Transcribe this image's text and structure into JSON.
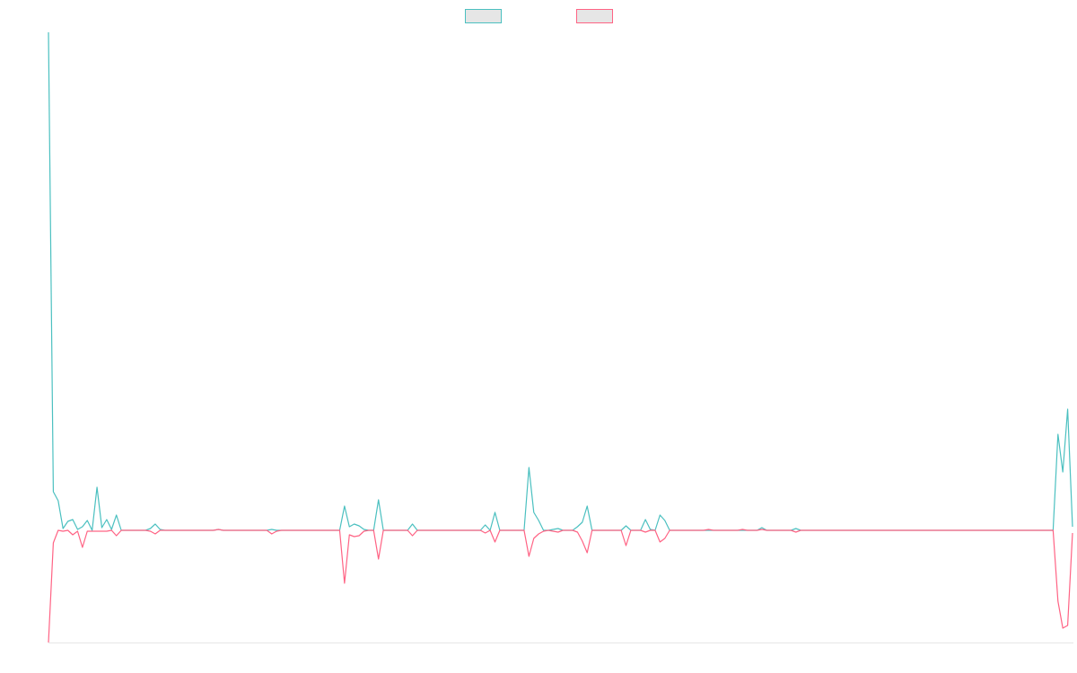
{
  "chart_data": {
    "type": "line",
    "ylim": [
      -125,
      555
    ],
    "legend": "top",
    "grid": false,
    "series": [
      {
        "color": "#4bc0c0",
        "values": [
          555,
          43,
          33,
          2,
          10,
          12,
          1,
          4,
          11,
          0,
          48,
          3,
          12,
          1,
          17,
          0,
          0,
          0,
          0,
          0,
          0,
          2,
          7,
          1,
          0,
          0,
          0,
          0,
          0,
          0,
          0,
          0,
          0,
          0,
          0,
          1,
          0,
          0,
          0,
          0,
          0,
          0,
          0,
          0,
          0,
          0,
          1,
          0,
          0,
          0,
          0,
          0,
          0,
          0,
          0,
          0,
          0,
          0,
          0,
          0,
          0,
          27,
          4,
          7,
          5,
          1,
          0,
          0,
          34,
          0,
          0,
          0,
          0,
          0,
          0,
          7,
          0,
          0,
          0,
          0,
          0,
          0,
          0,
          0,
          0,
          0,
          0,
          0,
          0,
          0,
          6,
          0,
          20,
          0,
          0,
          0,
          0,
          0,
          0,
          70,
          20,
          11,
          0,
          0,
          1,
          2,
          0,
          0,
          0,
          4,
          9,
          27,
          0,
          0,
          0,
          0,
          0,
          0,
          0,
          5,
          0,
          0,
          0,
          12,
          1,
          0,
          17,
          11,
          0,
          0,
          0,
          0,
          0,
          0,
          0,
          0,
          0,
          0,
          0,
          0,
          0,
          0,
          0,
          0,
          0,
          0,
          0,
          3,
          0,
          0,
          0,
          0,
          0,
          0,
          2,
          0,
          0,
          0,
          0,
          0,
          0,
          0,
          0,
          0,
          0,
          0,
          0,
          0,
          0,
          0,
          0,
          0,
          0,
          0,
          0,
          0,
          0,
          0,
          0,
          0,
          0,
          0,
          0,
          0,
          0,
          0,
          0,
          0,
          0,
          0,
          0,
          0,
          0,
          0,
          0,
          0,
          0,
          0,
          0,
          0,
          0,
          0,
          0,
          0,
          0,
          0,
          0,
          0,
          107,
          65,
          135,
          4
        ]
      },
      {
        "color": "#ff6384",
        "values": [
          -125,
          -14,
          0,
          -1,
          0,
          -5,
          -1,
          -19,
          -1,
          -1,
          -1,
          -1,
          -1,
          0,
          -6,
          0,
          0,
          0,
          0,
          0,
          0,
          -1,
          -4,
          0,
          0,
          0,
          0,
          0,
          0,
          0,
          0,
          0,
          0,
          0,
          0,
          1,
          0,
          0,
          0,
          0,
          0,
          0,
          0,
          0,
          0,
          0,
          -4,
          -1,
          0,
          0,
          0,
          0,
          0,
          0,
          0,
          0,
          0,
          0,
          0,
          0,
          0,
          -59,
          -5,
          -7,
          -6,
          -1,
          0,
          0,
          -32,
          0,
          0,
          0,
          0,
          0,
          0,
          -6,
          0,
          0,
          0,
          0,
          0,
          0,
          0,
          0,
          0,
          0,
          0,
          0,
          0,
          0,
          -3,
          0,
          -13,
          0,
          0,
          0,
          0,
          0,
          0,
          -29,
          -9,
          -4,
          -1,
          0,
          -1,
          -2,
          0,
          0,
          0,
          -2,
          -12,
          -25,
          0,
          0,
          0,
          0,
          0,
          0,
          0,
          -17,
          0,
          0,
          0,
          -2,
          0,
          0,
          -13,
          -9,
          0,
          0,
          0,
          0,
          0,
          0,
          0,
          0,
          1,
          0,
          0,
          0,
          0,
          0,
          0,
          1,
          0,
          0,
          0,
          1,
          0,
          0,
          0,
          0,
          0,
          0,
          -2,
          0,
          0,
          0,
          0,
          0,
          0,
          0,
          0,
          0,
          0,
          0,
          0,
          0,
          0,
          0,
          0,
          0,
          0,
          0,
          0,
          0,
          0,
          0,
          0,
          0,
          0,
          0,
          0,
          0,
          0,
          0,
          0,
          0,
          0,
          0,
          0,
          0,
          0,
          0,
          0,
          0,
          0,
          0,
          0,
          0,
          0,
          0,
          0,
          0,
          0,
          0,
          0,
          0,
          -79,
          -109,
          -106,
          -3
        ]
      }
    ]
  }
}
